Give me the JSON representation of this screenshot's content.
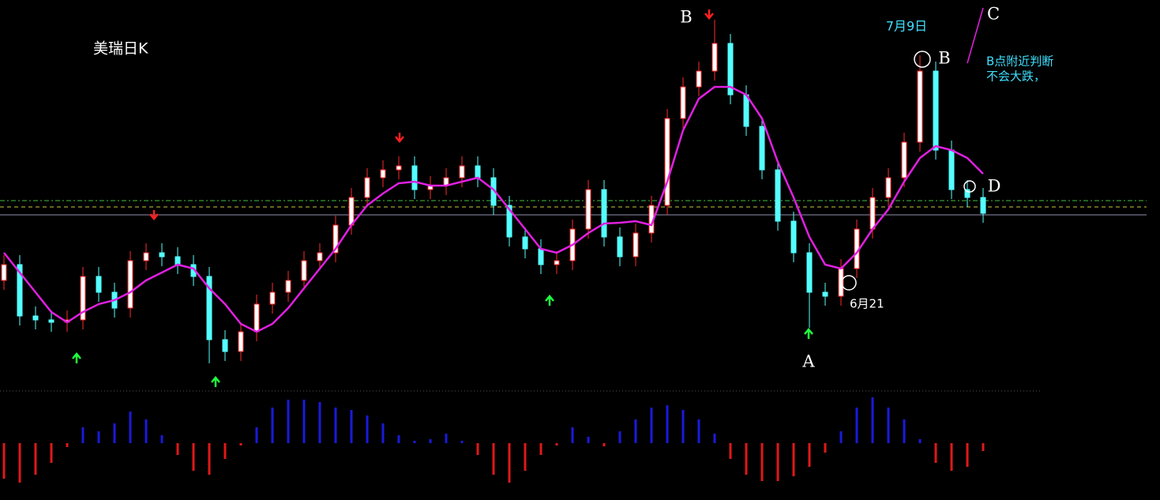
{
  "chart_data": {
    "type": "candlestick",
    "title": "美瑞日K",
    "ylim": [
      0,
      495
    ],
    "open": [
      140,
      160,
      95,
      90,
      87,
      90,
      145,
      125,
      105,
      165,
      175,
      170,
      160,
      145,
      65,
      50,
      75,
      110,
      125,
      140,
      165,
      175,
      210,
      245,
      270,
      280,
      285,
      255,
      260,
      270,
      285,
      270,
      235,
      195,
      180,
      160,
      165,
      205,
      255,
      195,
      170,
      200,
      235,
      345,
      385,
      405,
      440,
      375,
      335,
      280,
      215,
      175,
      125,
      120,
      155,
      205,
      245,
      270,
      315,
      405,
      305,
      255,
      245
    ],
    "high": [
      172,
      172,
      107,
      102,
      102,
      157,
      157,
      137,
      177,
      187,
      187,
      182,
      172,
      157,
      77,
      87,
      122,
      137,
      152,
      177,
      187,
      222,
      257,
      282,
      292,
      297,
      297,
      272,
      282,
      297,
      297,
      282,
      247,
      207,
      192,
      177,
      217,
      267,
      267,
      207,
      212,
      247,
      357,
      397,
      417,
      470,
      452,
      387,
      347,
      292,
      227,
      187,
      137,
      167,
      217,
      257,
      282,
      327,
      425,
      417,
      317,
      267,
      257
    ],
    "low": [
      128,
      83,
      78,
      75,
      75,
      78,
      113,
      93,
      93,
      153,
      158,
      148,
      133,
      35,
      38,
      38,
      63,
      98,
      113,
      128,
      153,
      163,
      198,
      233,
      258,
      268,
      243,
      243,
      248,
      258,
      258,
      223,
      183,
      168,
      148,
      148,
      153,
      193,
      183,
      158,
      158,
      188,
      223,
      333,
      373,
      393,
      363,
      323,
      268,
      203,
      163,
      80,
      108,
      108,
      143,
      193,
      233,
      258,
      303,
      293,
      243,
      233,
      213
    ],
    "close": [
      160,
      95,
      90,
      87,
      90,
      145,
      125,
      105,
      165,
      175,
      170,
      160,
      145,
      65,
      50,
      75,
      110,
      125,
      140,
      165,
      175,
      210,
      245,
      270,
      280,
      285,
      255,
      260,
      270,
      285,
      270,
      235,
      195,
      180,
      160,
      165,
      205,
      255,
      195,
      170,
      200,
      235,
      345,
      385,
      405,
      440,
      375,
      335,
      280,
      215,
      175,
      125,
      120,
      155,
      205,
      245,
      270,
      315,
      405,
      305,
      255,
      245,
      225
    ],
    "up_color": "#ff2a2a",
    "down_color": "#54ffff",
    "ma": {
      "color": "#e020e0",
      "values": [
        175,
        150,
        125,
        100,
        87,
        100,
        110,
        115,
        125,
        140,
        150,
        160,
        155,
        130,
        110,
        85,
        75,
        85,
        105,
        130,
        155,
        180,
        210,
        235,
        250,
        263,
        265,
        260,
        260,
        265,
        270,
        255,
        230,
        205,
        180,
        175,
        185,
        200,
        212,
        213,
        215,
        210,
        265,
        330,
        370,
        385,
        385,
        375,
        345,
        290,
        245,
        195,
        160,
        155,
        175,
        205,
        230,
        265,
        295,
        310,
        305,
        295,
        275
      ]
    },
    "levels": [
      {
        "value": 241,
        "color": "#40c040"
      },
      {
        "value": 233,
        "color": "#c8c840"
      },
      {
        "value": 223,
        "color": "#9090b0"
      }
    ],
    "macd": {
      "ylim": [
        -60,
        60
      ],
      "pos_color": "#1a1adc",
      "neg_color": "#e01818",
      "values": [
        -45,
        -50,
        -40,
        -25,
        -5,
        20,
        15,
        25,
        40,
        30,
        10,
        -15,
        -35,
        -40,
        -20,
        -3,
        20,
        45,
        55,
        55,
        52,
        45,
        42,
        35,
        25,
        10,
        3,
        5,
        12,
        3,
        -15,
        -40,
        -50,
        -35,
        -15,
        -3,
        20,
        8,
        -4,
        15,
        30,
        45,
        48,
        42,
        30,
        12,
        -20,
        -40,
        -48,
        -48,
        -42,
        -30,
        -12,
        15,
        45,
        58,
        45,
        30,
        5,
        -25,
        -35,
        -30,
        -10
      ]
    },
    "annotations": {
      "b1": "B",
      "b2": "B",
      "c": "C",
      "d": "D",
      "a": "A",
      "date1": "7月9日",
      "note1": "B点附近判断",
      "note2": "不会大跌，",
      "date2": "6月21"
    }
  }
}
